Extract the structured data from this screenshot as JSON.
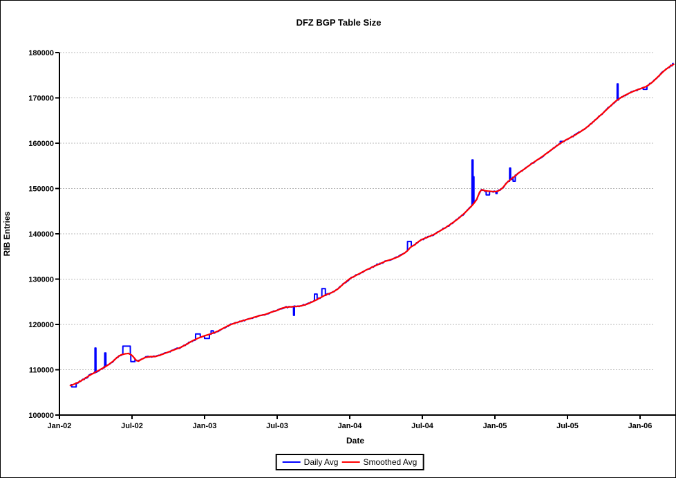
{
  "title": "DFZ BGP Table Size",
  "chart_data": {
    "type": "line",
    "title": "DFZ BGP Table Size",
    "xlabel": "Date",
    "ylabel": "RIB Entries",
    "ylim": [
      100000,
      180000
    ],
    "y_ticks": [
      100000,
      110000,
      120000,
      130000,
      140000,
      150000,
      160000,
      170000,
      180000
    ],
    "x_ticks": [
      {
        "label": "Jan-02",
        "t": 0.0
      },
      {
        "label": "Jul-02",
        "t": 0.5
      },
      {
        "label": "Jan-03",
        "t": 1.0
      },
      {
        "label": "Jul-03",
        "t": 1.5
      },
      {
        "label": "Jan-04",
        "t": 2.0
      },
      {
        "label": "Jul-04",
        "t": 2.5
      },
      {
        "label": "Jan-05",
        "t": 3.0
      },
      {
        "label": "Jul-05",
        "t": 3.5
      },
      {
        "label": "Jan-06",
        "t": 4.0
      }
    ],
    "grid": "horizontal-dotted",
    "legend": [
      {
        "label": "Daily Avg",
        "color": "#0000ff"
      },
      {
        "label": "Smoothed Avg",
        "color": "#ff0000"
      }
    ],
    "legend_position": "bottom-center",
    "x_domain_note": "t = years since Jan-2002; data runs ~Feb-2002 to ~Mar-2006",
    "smoothed_avg_points": [
      [
        0.075,
        106500
      ],
      [
        0.1,
        106800
      ],
      [
        0.135,
        107300
      ],
      [
        0.167,
        107900
      ],
      [
        0.21,
        108800
      ],
      [
        0.25,
        109500
      ],
      [
        0.29,
        110200
      ],
      [
        0.333,
        111000
      ],
      [
        0.37,
        111900
      ],
      [
        0.4,
        112800
      ],
      [
        0.425,
        113300
      ],
      [
        0.45,
        113500
      ],
      [
        0.475,
        113600
      ],
      [
        0.5,
        113200
      ],
      [
        0.515,
        112600
      ],
      [
        0.53,
        112000
      ],
      [
        0.545,
        111900
      ],
      [
        0.565,
        112300
      ],
      [
        0.59,
        112700
      ],
      [
        0.625,
        112900
      ],
      [
        0.66,
        112900
      ],
      [
        0.7,
        113300
      ],
      [
        0.75,
        113900
      ],
      [
        0.79,
        114400
      ],
      [
        0.833,
        114900
      ],
      [
        0.875,
        115600
      ],
      [
        0.917,
        116400
      ],
      [
        0.958,
        117000
      ],
      [
        1.0,
        117500
      ],
      [
        1.042,
        117900
      ],
      [
        1.083,
        118400
      ],
      [
        1.125,
        119100
      ],
      [
        1.167,
        119800
      ],
      [
        1.208,
        120300
      ],
      [
        1.25,
        120700
      ],
      [
        1.292,
        121100
      ],
      [
        1.333,
        121500
      ],
      [
        1.375,
        121900
      ],
      [
        1.417,
        122200
      ],
      [
        1.458,
        122700
      ],
      [
        1.5,
        123100
      ],
      [
        1.535,
        123600
      ],
      [
        1.56,
        123800
      ],
      [
        1.6,
        123900
      ],
      [
        1.645,
        124000
      ],
      [
        1.667,
        124100
      ],
      [
        1.708,
        124500
      ],
      [
        1.75,
        125100
      ],
      [
        1.792,
        125800
      ],
      [
        1.833,
        126500
      ],
      [
        1.875,
        127000
      ],
      [
        1.917,
        127800
      ],
      [
        1.958,
        129000
      ],
      [
        2.0,
        130100
      ],
      [
        2.042,
        130800
      ],
      [
        2.083,
        131500
      ],
      [
        2.125,
        132200
      ],
      [
        2.167,
        132800
      ],
      [
        2.208,
        133400
      ],
      [
        2.25,
        134000
      ],
      [
        2.292,
        134400
      ],
      [
        2.333,
        134900
      ],
      [
        2.375,
        135700
      ],
      [
        2.4,
        136300
      ],
      [
        2.42,
        137100
      ],
      [
        2.445,
        137500
      ],
      [
        2.475,
        138300
      ],
      [
        2.5,
        138800
      ],
      [
        2.54,
        139300
      ],
      [
        2.583,
        139900
      ],
      [
        2.625,
        140700
      ],
      [
        2.667,
        141500
      ],
      [
        2.708,
        142400
      ],
      [
        2.75,
        143400
      ],
      [
        2.792,
        144600
      ],
      [
        2.833,
        145900
      ],
      [
        2.855,
        146700
      ],
      [
        2.875,
        147600
      ],
      [
        2.895,
        149200
      ],
      [
        2.91,
        149800
      ],
      [
        2.93,
        149500
      ],
      [
        2.96,
        149400
      ],
      [
        3.0,
        149300
      ],
      [
        3.02,
        149400
      ],
      [
        3.05,
        150000
      ],
      [
        3.083,
        151300
      ],
      [
        3.125,
        152400
      ],
      [
        3.167,
        153500
      ],
      [
        3.208,
        154400
      ],
      [
        3.25,
        155400
      ],
      [
        3.292,
        156300
      ],
      [
        3.333,
        157200
      ],
      [
        3.375,
        158200
      ],
      [
        3.417,
        159200
      ],
      [
        3.458,
        160100
      ],
      [
        3.5,
        160900
      ],
      [
        3.542,
        161600
      ],
      [
        3.583,
        162400
      ],
      [
        3.625,
        163300
      ],
      [
        3.667,
        164400
      ],
      [
        3.708,
        165600
      ],
      [
        3.75,
        166800
      ],
      [
        3.792,
        168100
      ],
      [
        3.833,
        169300
      ],
      [
        3.875,
        170200
      ],
      [
        3.917,
        170900
      ],
      [
        3.958,
        171500
      ],
      [
        4.0,
        172000
      ],
      [
        4.042,
        172500
      ],
      [
        4.083,
        173400
      ],
      [
        4.125,
        174700
      ],
      [
        4.167,
        176000
      ],
      [
        4.208,
        177000
      ],
      [
        4.232,
        177400
      ]
    ],
    "daily_deviations": [
      [
        0.085,
        0.115,
        106200
      ],
      [
        0.245,
        0.2515,
        114800
      ],
      [
        0.312,
        0.32,
        113700
      ],
      [
        0.437,
        0.488,
        115200
      ],
      [
        0.492,
        0.52,
        111800
      ],
      [
        0.938,
        0.97,
        117900
      ],
      [
        1.0,
        1.033,
        116900
      ],
      [
        1.045,
        1.06,
        118600
      ],
      [
        1.613,
        1.619,
        122000
      ],
      [
        1.757,
        1.775,
        126700
      ],
      [
        1.808,
        1.832,
        127900
      ],
      [
        2.186,
        2.208,
        133300
      ],
      [
        2.398,
        2.424,
        138300
      ],
      [
        2.8425,
        2.8495,
        156300
      ],
      [
        2.85,
        2.8555,
        152600
      ],
      [
        2.94,
        2.963,
        148600
      ],
      [
        3.007,
        3.015,
        148900
      ],
      [
        3.1015,
        3.108,
        154500
      ],
      [
        3.125,
        3.14,
        151600
      ],
      [
        3.45,
        3.478,
        160400
      ],
      [
        3.8425,
        3.8485,
        173100
      ],
      [
        4.022,
        4.047,
        171900
      ],
      [
        4.225,
        4.232,
        177600
      ]
    ],
    "colors": {
      "daily_avg": "#0000ff",
      "smoothed_avg": "#ff0000",
      "gridline": "#b8b8b8",
      "axis": "#000000",
      "text": "#000000",
      "background": "#ffffff"
    }
  }
}
